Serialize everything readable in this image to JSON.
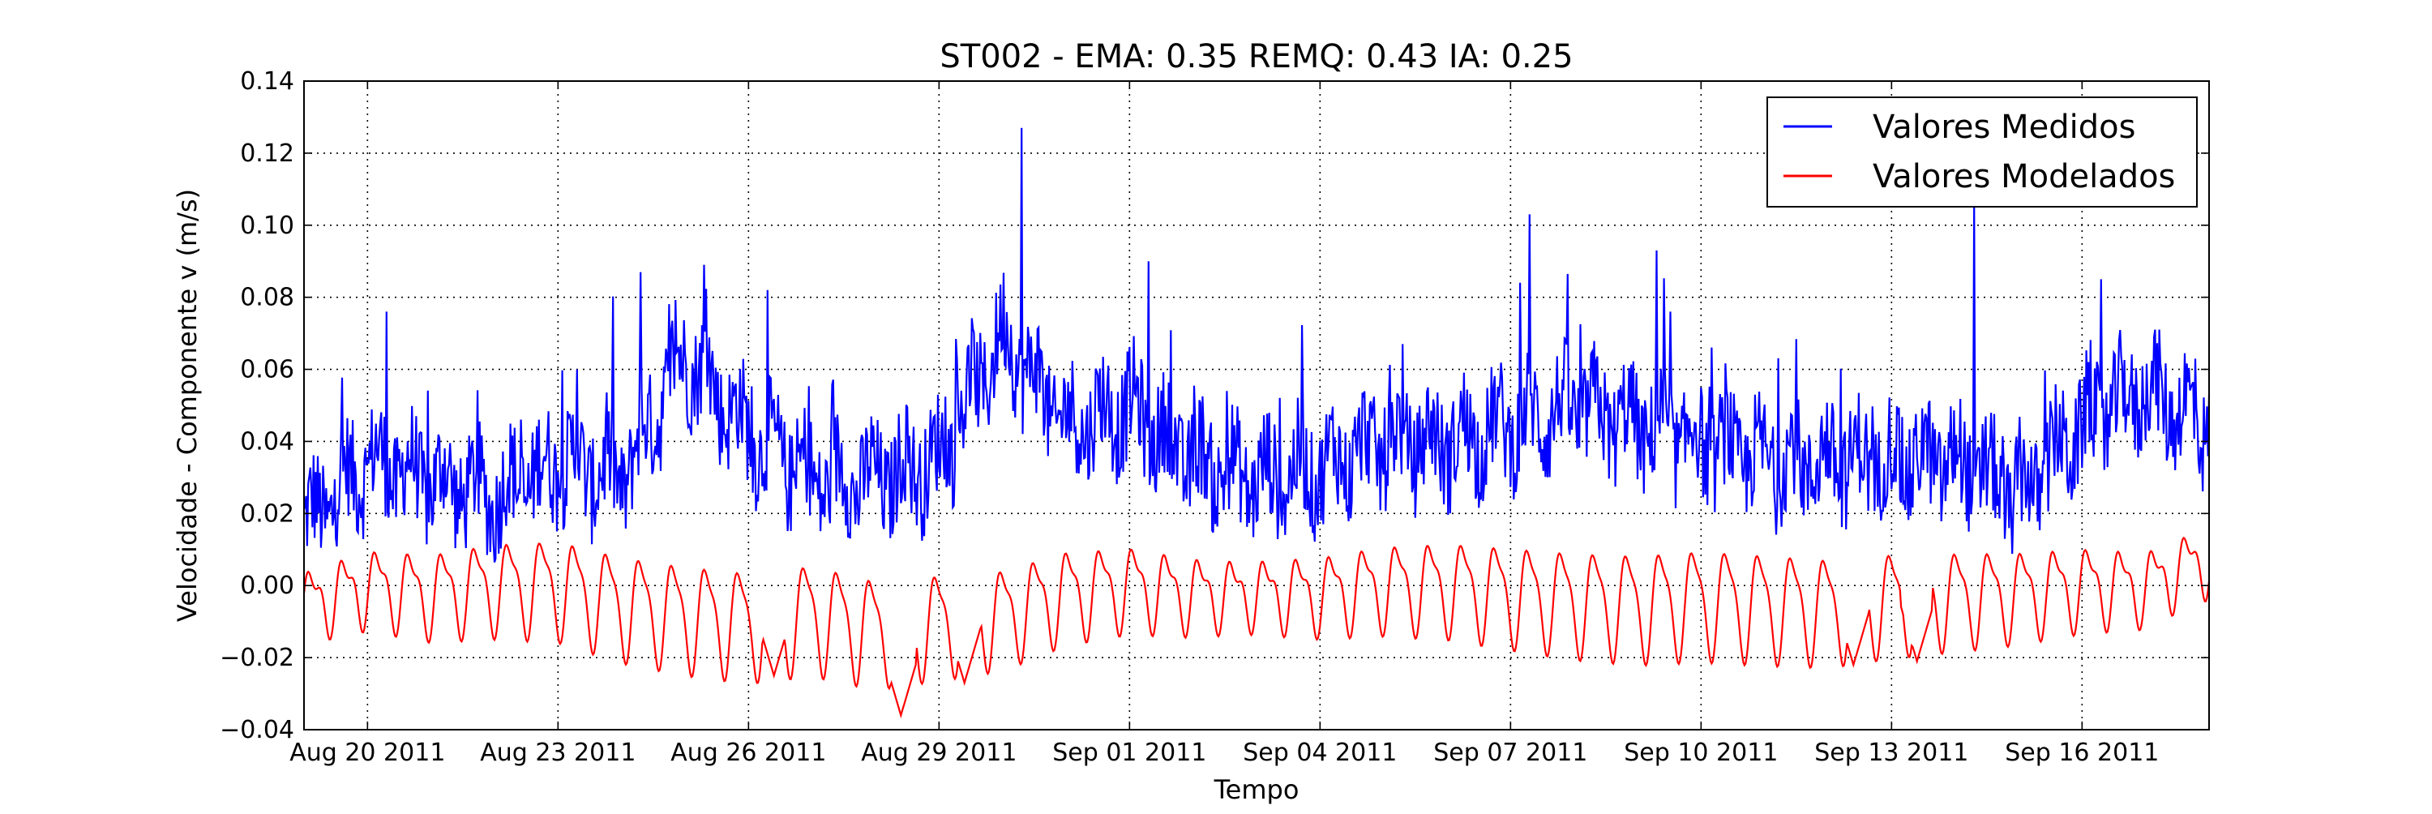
{
  "chart_data": {
    "type": "line",
    "title": "ST002 - EMA: 0.35  REMQ: 0.43  IA: 0.25",
    "xlabel": "Tempo",
    "ylabel": "Velocidade - Componente v (m/s)",
    "xlim": [
      "2011-08-19",
      "2011-09-18"
    ],
    "ylim": [
      -0.04,
      0.14
    ],
    "yticks": [
      -0.04,
      -0.02,
      0.0,
      0.02,
      0.04,
      0.06,
      0.08,
      0.1,
      0.12,
      0.14
    ],
    "ytick_labels": [
      "−0.04",
      "−0.02",
      "0.00",
      "0.02",
      "0.04",
      "0.06",
      "0.08",
      "0.10",
      "0.12",
      "0.14"
    ],
    "xticks": [
      "2011-08-20",
      "2011-08-23",
      "2011-08-26",
      "2011-08-29",
      "2011-09-01",
      "2011-09-04",
      "2011-09-07",
      "2011-09-10",
      "2011-09-13",
      "2011-09-16"
    ],
    "xtick_labels": [
      "Aug 20 2011",
      "Aug 23 2011",
      "Aug 26 2011",
      "Aug 29 2011",
      "Sep 01 2011",
      "Sep 04 2011",
      "Sep 07 2011",
      "Sep 10 2011",
      "Sep 13 2011",
      "Sep 16 2011"
    ],
    "grid": true,
    "legend": "top-right",
    "series": [
      {
        "name": "Valores Medidos",
        "color": "#0000ff",
        "x": [
          "2011-08-19",
          "2011-08-20",
          "2011-08-21",
          "2011-08-22",
          "2011-08-23",
          "2011-08-24",
          "2011-08-25",
          "2011-08-26",
          "2011-08-27",
          "2011-08-28",
          "2011-08-29",
          "2011-08-30",
          "2011-08-31",
          "2011-09-01",
          "2011-09-02",
          "2011-09-03",
          "2011-09-04",
          "2011-09-05",
          "2011-09-06",
          "2011-09-07",
          "2011-09-08",
          "2011-09-09",
          "2011-09-10",
          "2011-09-11",
          "2011-09-12",
          "2011-09-13",
          "2011-09-14",
          "2011-09-15",
          "2011-09-16",
          "2011-09-17",
          "2011-09-18"
        ],
        "values": [
          0.012,
          0.03,
          0.025,
          0.02,
          0.03,
          0.025,
          0.06,
          0.038,
          0.025,
          0.025,
          0.03,
          0.065,
          0.04,
          0.045,
          0.03,
          0.025,
          0.028,
          0.035,
          0.035,
          0.04,
          0.045,
          0.04,
          0.035,
          0.03,
          0.03,
          0.03,
          0.03,
          0.02,
          0.04,
          0.05,
          0.04
        ],
        "peaks": [
          {
            "x": "2011-08-20",
            "y": 0.076
          },
          {
            "x": "2011-08-23",
            "y": 0.06
          },
          {
            "x": "2011-08-24",
            "y": 0.087
          },
          {
            "x": "2011-08-25",
            "y": 0.089
          },
          {
            "x": "2011-08-26",
            "y": 0.082
          },
          {
            "x": "2011-08-30",
            "y": 0.127
          },
          {
            "x": "2011-08-30",
            "y": 0.096
          },
          {
            "x": "2011-09-01",
            "y": 0.09
          },
          {
            "x": "2011-09-05",
            "y": 0.067
          },
          {
            "x": "2011-09-07",
            "y": 0.103
          },
          {
            "x": "2011-09-09",
            "y": 0.093
          },
          {
            "x": "2011-09-14",
            "y": 0.107
          },
          {
            "x": "2011-09-16",
            "y": 0.085
          }
        ]
      },
      {
        "name": "Valores Modelados",
        "color": "#ff0000",
        "x": [
          "2011-08-19",
          "2011-08-20",
          "2011-08-21",
          "2011-08-22",
          "2011-08-23",
          "2011-08-24",
          "2011-08-25",
          "2011-08-26",
          "2011-08-27",
          "2011-08-28",
          "2011-08-29",
          "2011-08-30",
          "2011-08-31",
          "2011-09-01",
          "2011-09-02",
          "2011-09-03",
          "2011-09-04",
          "2011-09-05",
          "2011-09-06",
          "2011-09-07",
          "2011-09-08",
          "2011-09-09",
          "2011-09-10",
          "2011-09-11",
          "2011-09-12",
          "2011-09-13",
          "2011-09-14",
          "2011-09-15",
          "2011-09-16",
          "2011-09-17",
          "2011-09-18"
        ],
        "values": [
          -0.005,
          0.0,
          -0.002,
          0.0,
          0.0,
          -0.005,
          -0.008,
          -0.01,
          -0.008,
          -0.012,
          -0.01,
          -0.008,
          -0.002,
          0.0,
          -0.002,
          -0.002,
          -0.002,
          0.0,
          0.0,
          -0.002,
          -0.004,
          -0.005,
          -0.004,
          -0.005,
          -0.006,
          -0.004,
          -0.003,
          -0.002,
          0.0,
          0.0,
          0.008
        ],
        "extremes": [
          {
            "x": "2011-08-26",
            "y": -0.025
          },
          {
            "x": "2011-08-28",
            "y": -0.036
          },
          {
            "x": "2011-08-29",
            "y": -0.027
          },
          {
            "x": "2011-09-12",
            "y": -0.022
          },
          {
            "x": "2011-09-13",
            "y": -0.021
          }
        ]
      }
    ]
  }
}
